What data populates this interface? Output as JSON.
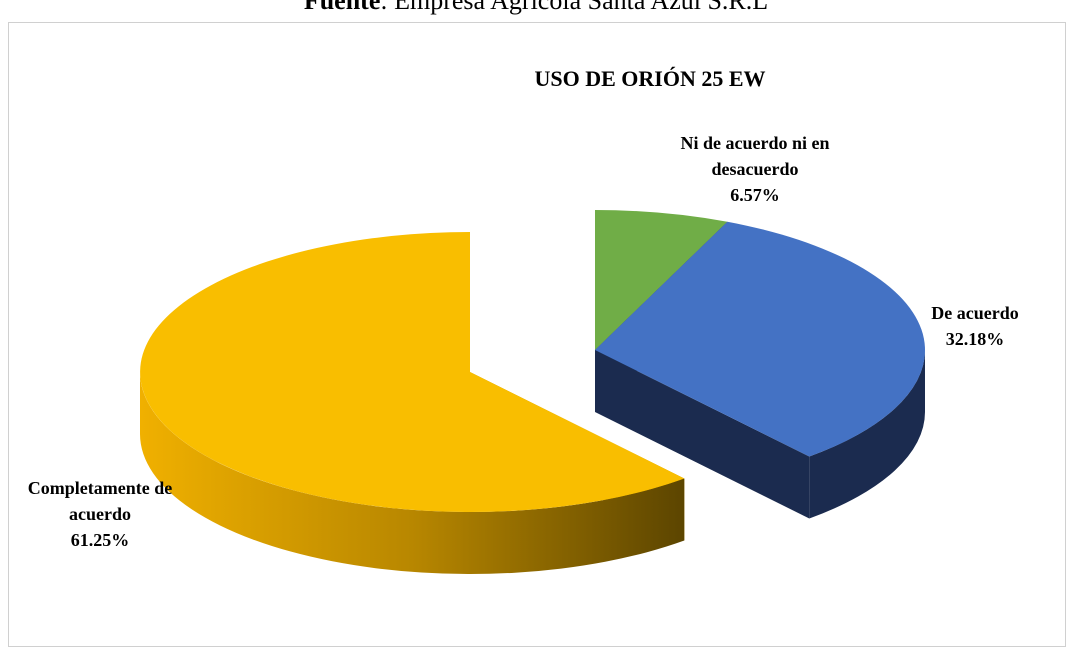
{
  "source_label": "Fuente",
  "source_text": ": Empresa Agrícola Santa Azul S.R.L",
  "chart_data": {
    "type": "pie",
    "title": "USO DE ORIÓN 25 EW",
    "categories": [
      "Ni de acuerdo ni en desacuerdo",
      "De acuerdo",
      "Completamente de acuerdo"
    ],
    "values": [
      6.57,
      32.18,
      61.25
    ],
    "value_labels": [
      "6.57%",
      "32.18%",
      "61.25%"
    ],
    "colors": [
      "#70ad47",
      "#4472c4",
      "#f9be00"
    ]
  }
}
